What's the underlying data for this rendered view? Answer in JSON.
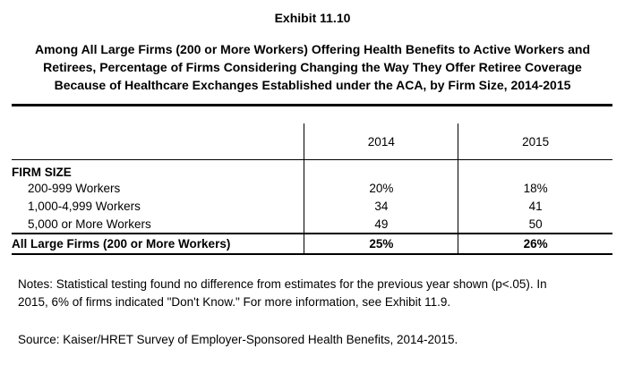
{
  "exhibit": "Exhibit 11.10",
  "title_lines": [
    "Among All Large Firms (200 or More Workers) Offering Health Benefits to Active Workers and",
    "Retirees, Percentage of Firms Considering Changing the Way They Offer Retiree Coverage",
    "Because of Healthcare Exchanges Established under the ACA, by Firm Size, 2014-2015"
  ],
  "chart_data": {
    "type": "table",
    "columns": [
      "",
      "2014",
      "2015"
    ],
    "section_label": "FIRM SIZE",
    "rows": [
      {
        "label": "200-999 Workers",
        "values": [
          "20%",
          "18%"
        ]
      },
      {
        "label": "1,000-4,999 Workers",
        "values": [
          "34",
          "41"
        ]
      },
      {
        "label": "5,000 or More Workers",
        "values": [
          "49",
          "50"
        ]
      }
    ],
    "total": {
      "label": "All Large Firms (200 or More Workers)",
      "values": [
        "25%",
        "26%"
      ]
    }
  },
  "notes_lines": [
    "Notes: Statistical testing found no difference from estimates for the previous year shown (p<.05).  In",
    "2015, 6% of firms indicated \"Don't Know.\"  For more information, see Exhibit 11.9."
  ],
  "source": "Source: Kaiser/HRET Survey of Employer-Sponsored Health Benefits, 2014-2015."
}
